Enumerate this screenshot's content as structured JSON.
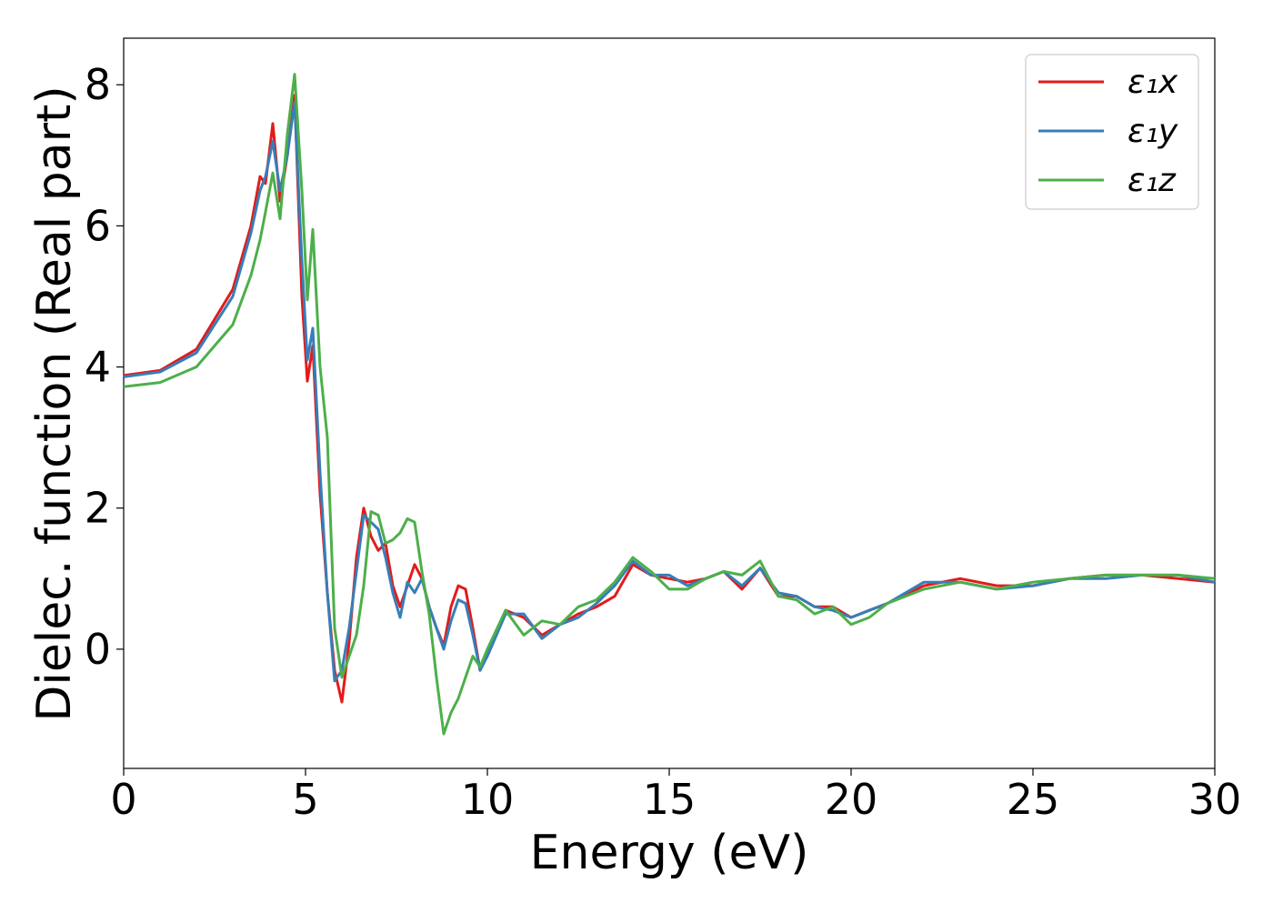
{
  "chart_data": {
    "type": "line",
    "xlabel": "Energy (eV)",
    "ylabel": "Dielec. function (Real part)",
    "x": [
      0,
      1,
      2,
      3,
      3.5,
      3.75,
      3.9,
      4.1,
      4.3,
      4.5,
      4.7,
      4.9,
      5.05,
      5.2,
      5.4,
      5.6,
      5.8,
      6.0,
      6.2,
      6.4,
      6.6,
      6.8,
      7.0,
      7.2,
      7.4,
      7.6,
      7.8,
      8.0,
      8.2,
      8.4,
      8.6,
      8.8,
      9.0,
      9.2,
      9.4,
      9.6,
      9.8,
      10,
      10.5,
      11,
      11.5,
      12,
      12.5,
      13,
      13.5,
      14,
      14.5,
      15,
      15.5,
      16,
      16.5,
      17,
      17.5,
      18,
      18.5,
      19,
      19.5,
      20,
      20.5,
      21,
      22,
      23,
      24,
      25,
      26,
      27,
      28,
      29,
      30
    ],
    "series": [
      {
        "name": "ε₁x",
        "color": "#e41a1c",
        "values": [
          3.88,
          3.95,
          4.25,
          5.1,
          6.0,
          6.7,
          6.6,
          7.45,
          6.35,
          7.0,
          7.85,
          5.0,
          3.8,
          4.3,
          2.2,
          0.8,
          -0.3,
          -0.75,
          0.1,
          1.3,
          2.0,
          1.6,
          1.4,
          1.5,
          0.9,
          0.6,
          0.9,
          1.2,
          1.0,
          0.6,
          0.3,
          0.05,
          0.6,
          0.9,
          0.85,
          0.3,
          -0.3,
          -0.05,
          0.55,
          0.45,
          0.2,
          0.35,
          0.5,
          0.6,
          0.75,
          1.2,
          1.05,
          1.0,
          0.95,
          1.0,
          1.1,
          0.85,
          1.15,
          0.75,
          0.75,
          0.6,
          0.6,
          0.45,
          0.55,
          0.65,
          0.9,
          1.0,
          0.9,
          0.9,
          1.0,
          1.05,
          1.05,
          1.0,
          0.95
        ]
      },
      {
        "name": "ε₁y",
        "color": "#377eb8",
        "values": [
          3.86,
          3.93,
          4.2,
          5.0,
          5.9,
          6.5,
          6.7,
          7.2,
          6.5,
          7.0,
          7.75,
          5.5,
          4.1,
          4.55,
          2.5,
          0.8,
          -0.45,
          -0.3,
          0.3,
          1.1,
          1.9,
          1.8,
          1.7,
          1.3,
          0.8,
          0.45,
          0.95,
          0.8,
          1.0,
          0.6,
          0.3,
          0.0,
          0.4,
          0.7,
          0.65,
          0.2,
          -0.3,
          -0.1,
          0.5,
          0.5,
          0.15,
          0.35,
          0.45,
          0.65,
          0.9,
          1.25,
          1.05,
          1.05,
          0.9,
          1.0,
          1.1,
          0.9,
          1.15,
          0.8,
          0.75,
          0.6,
          0.55,
          0.45,
          0.55,
          0.65,
          0.95,
          0.95,
          0.85,
          0.9,
          1.0,
          1.0,
          1.05,
          1.05,
          0.95
        ]
      },
      {
        "name": "ε₁z",
        "color": "#4daf4a",
        "values": [
          3.72,
          3.78,
          4.0,
          4.6,
          5.3,
          5.8,
          6.2,
          6.75,
          6.1,
          7.3,
          8.15,
          6.5,
          4.95,
          5.95,
          4.0,
          3.0,
          0.3,
          -0.4,
          -0.1,
          0.2,
          0.9,
          1.95,
          1.9,
          1.5,
          1.55,
          1.65,
          1.85,
          1.8,
          1.1,
          0.5,
          -0.4,
          -1.2,
          -0.9,
          -0.7,
          -0.4,
          -0.1,
          -0.25,
          0.0,
          0.55,
          0.2,
          0.4,
          0.35,
          0.6,
          0.7,
          0.95,
          1.3,
          1.1,
          0.85,
          0.85,
          1.0,
          1.1,
          1.05,
          1.25,
          0.75,
          0.7,
          0.5,
          0.6,
          0.35,
          0.45,
          0.65,
          0.85,
          0.95,
          0.85,
          0.95,
          1.0,
          1.05,
          1.05,
          1.05,
          1.0
        ]
      }
    ],
    "xlim": [
      0,
      30
    ],
    "xticks": [
      0,
      5,
      10,
      15,
      20,
      25,
      30
    ],
    "ylim": [
      -1.69,
      8.66
    ],
    "yticks": [
      0,
      2,
      4,
      6,
      8
    ],
    "grid": false,
    "legend": "upper right"
  }
}
